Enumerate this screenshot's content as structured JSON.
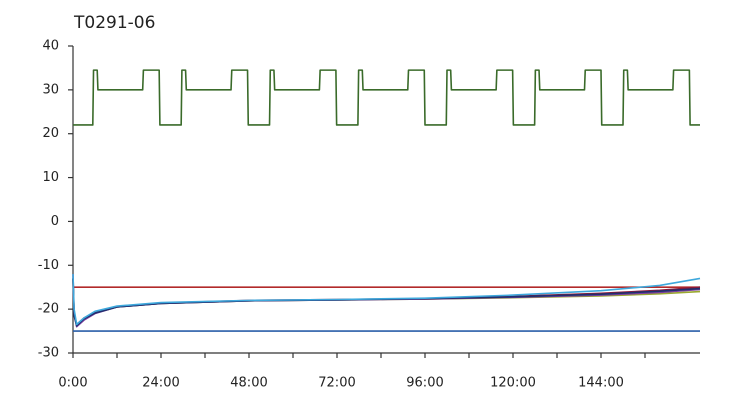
{
  "chart_data": {
    "type": "line",
    "title": "T0291-06",
    "xlim": [
      0,
      171
    ],
    "ylim": [
      -30,
      40
    ],
    "yticks": [
      -30,
      -20,
      -10,
      0,
      10,
      20,
      30,
      40
    ],
    "xticks": [
      {
        "value": 0,
        "label": "0:00"
      },
      {
        "value": 24,
        "label": "24:00"
      },
      {
        "value": 48,
        "label": "48:00"
      },
      {
        "value": 72,
        "label": "72:00"
      },
      {
        "value": 96,
        "label": "96:00"
      },
      {
        "value": 120,
        "label": "120:00"
      },
      {
        "value": 144,
        "label": "144:00"
      }
    ],
    "xminorticks": [
      12,
      36,
      60,
      84,
      108,
      132,
      156
    ],
    "grid": false,
    "series": [
      {
        "color": "#3a6b2a",
        "x": [
          0,
          5.4,
          5.6,
          6.6,
          6.8,
          19,
          19.2,
          23.5,
          23.7,
          29.5,
          29.7,
          30.7,
          30.9,
          43.1,
          43.3,
          47.6,
          47.8,
          53.6,
          53.8,
          54.8,
          55,
          67.2,
          67.4,
          71.7,
          71.9,
          77.7,
          77.9,
          78.9,
          79.1,
          91.3,
          91.5,
          95.8,
          96,
          101.8,
          102,
          103,
          103.2,
          115.4,
          115.6,
          119.9,
          120.1,
          125.9,
          126.1,
          127.1,
          127.3,
          139.5,
          139.7,
          144,
          144.2,
          150,
          150.2,
          151.2,
          151.4,
          163.6,
          163.8,
          168.1,
          168.3,
          171
        ],
        "values": [
          22,
          22,
          34.5,
          34.5,
          30,
          30,
          34.5,
          34.5,
          22,
          22,
          34.5,
          34.5,
          30,
          30,
          34.5,
          34.5,
          22,
          22,
          34.5,
          34.5,
          30,
          30,
          34.5,
          34.5,
          22,
          22,
          34.5,
          34.5,
          30,
          30,
          34.5,
          34.5,
          22,
          22,
          34.5,
          34.5,
          30,
          30,
          34.5,
          34.5,
          22,
          22,
          34.5,
          34.5,
          30,
          30,
          34.5,
          34.5,
          22,
          22,
          34.5,
          34.5,
          30,
          30,
          34.5,
          34.5,
          22,
          22
        ]
      },
      {
        "color": "#b22a2a",
        "x": [
          0,
          171
        ],
        "values": [
          -15,
          -15
        ]
      },
      {
        "color": "#2a5ea8",
        "x": [
          0,
          171
        ],
        "values": [
          -25,
          -25
        ]
      },
      {
        "color": "#9aa830",
        "x": [
          0,
          0.3,
          1,
          3,
          6,
          12,
          24,
          48,
          72,
          96,
          120,
          144,
          160,
          171
        ],
        "values": [
          -13,
          -21,
          -23.6,
          -22.2,
          -20.9,
          -19.5,
          -18.7,
          -18.1,
          -17.9,
          -17.7,
          -17.4,
          -17,
          -16.5,
          -16
        ]
      },
      {
        "color": "#7b3fa0",
        "x": [
          0,
          0.3,
          1,
          3,
          6,
          12,
          24,
          48,
          72,
          96,
          120,
          144,
          160,
          171
        ],
        "values": [
          -12,
          -21,
          -24,
          -22.5,
          -21,
          -19.5,
          -18.7,
          -18.1,
          -17.9,
          -17.7,
          -17.3,
          -16.8,
          -16.2,
          -15.5
        ]
      },
      {
        "color": "#8b1a3a",
        "x": [
          0,
          0.3,
          1,
          3,
          6,
          12,
          24,
          48,
          72,
          96,
          120,
          144,
          160,
          171
        ],
        "values": [
          -13,
          -21,
          -23.5,
          -22,
          -20.8,
          -19.4,
          -18.6,
          -18,
          -17.8,
          -17.6,
          -17.1,
          -16.4,
          -15.7,
          -15
        ]
      },
      {
        "color": "#1f2f6e",
        "x": [
          0,
          0.3,
          1,
          3,
          6,
          12,
          24,
          48,
          72,
          96,
          120,
          144,
          160,
          171
        ],
        "values": [
          -13,
          -21.5,
          -23.8,
          -22.2,
          -20.9,
          -19.5,
          -18.7,
          -18.1,
          -17.9,
          -17.6,
          -17.2,
          -16.6,
          -15.9,
          -15.3
        ]
      },
      {
        "color": "#3ea8dc",
        "x": [
          0,
          0.3,
          1,
          3,
          6,
          12,
          24,
          48,
          72,
          96,
          120,
          144,
          160,
          171
        ],
        "values": [
          -12,
          -20,
          -23.5,
          -22,
          -20.5,
          -19.3,
          -18.5,
          -18,
          -17.8,
          -17.5,
          -16.8,
          -15.8,
          -14.6,
          -13
        ]
      }
    ]
  }
}
